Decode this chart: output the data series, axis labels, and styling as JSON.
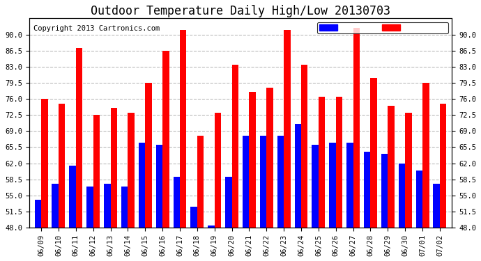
{
  "title": "Outdoor Temperature Daily High/Low 20130703",
  "copyright": "Copyright 2013 Cartronics.com",
  "dates": [
    "06/09",
    "06/10",
    "06/11",
    "06/12",
    "06/13",
    "06/14",
    "06/15",
    "06/16",
    "06/17",
    "06/18",
    "06/19",
    "06/20",
    "06/21",
    "06/22",
    "06/23",
    "06/24",
    "06/25",
    "06/26",
    "06/27",
    "06/28",
    "06/29",
    "06/30",
    "07/01",
    "07/02"
  ],
  "high": [
    76.0,
    75.0,
    87.0,
    72.5,
    74.0,
    73.0,
    79.5,
    86.5,
    91.0,
    68.0,
    73.0,
    83.5,
    77.5,
    78.5,
    91.0,
    83.5,
    76.5,
    76.5,
    91.5,
    80.5,
    74.5,
    73.0,
    79.5,
    75.0
  ],
  "low": [
    54.0,
    57.5,
    61.5,
    57.0,
    57.5,
    57.0,
    66.5,
    66.0,
    59.0,
    52.5,
    48.5,
    59.0,
    68.0,
    68.0,
    68.0,
    70.5,
    66.0,
    66.5,
    66.5,
    64.5,
    64.0,
    62.0,
    60.5,
    57.5
  ],
  "high_color": "#ff0000",
  "low_color": "#0000ff",
  "bg_color": "#ffffff",
  "plot_bg_color": "#ffffff",
  "grid_color": "#bbbbbb",
  "ybase": 48.0,
  "ylim": [
    48.0,
    93.5
  ],
  "yticks": [
    48.0,
    51.5,
    55.0,
    58.5,
    62.0,
    65.5,
    69.0,
    72.5,
    76.0,
    79.5,
    83.0,
    86.5,
    90.0
  ],
  "title_fontsize": 12,
  "copyright_fontsize": 7.5,
  "tick_fontsize": 7.5,
  "bar_width": 0.38
}
